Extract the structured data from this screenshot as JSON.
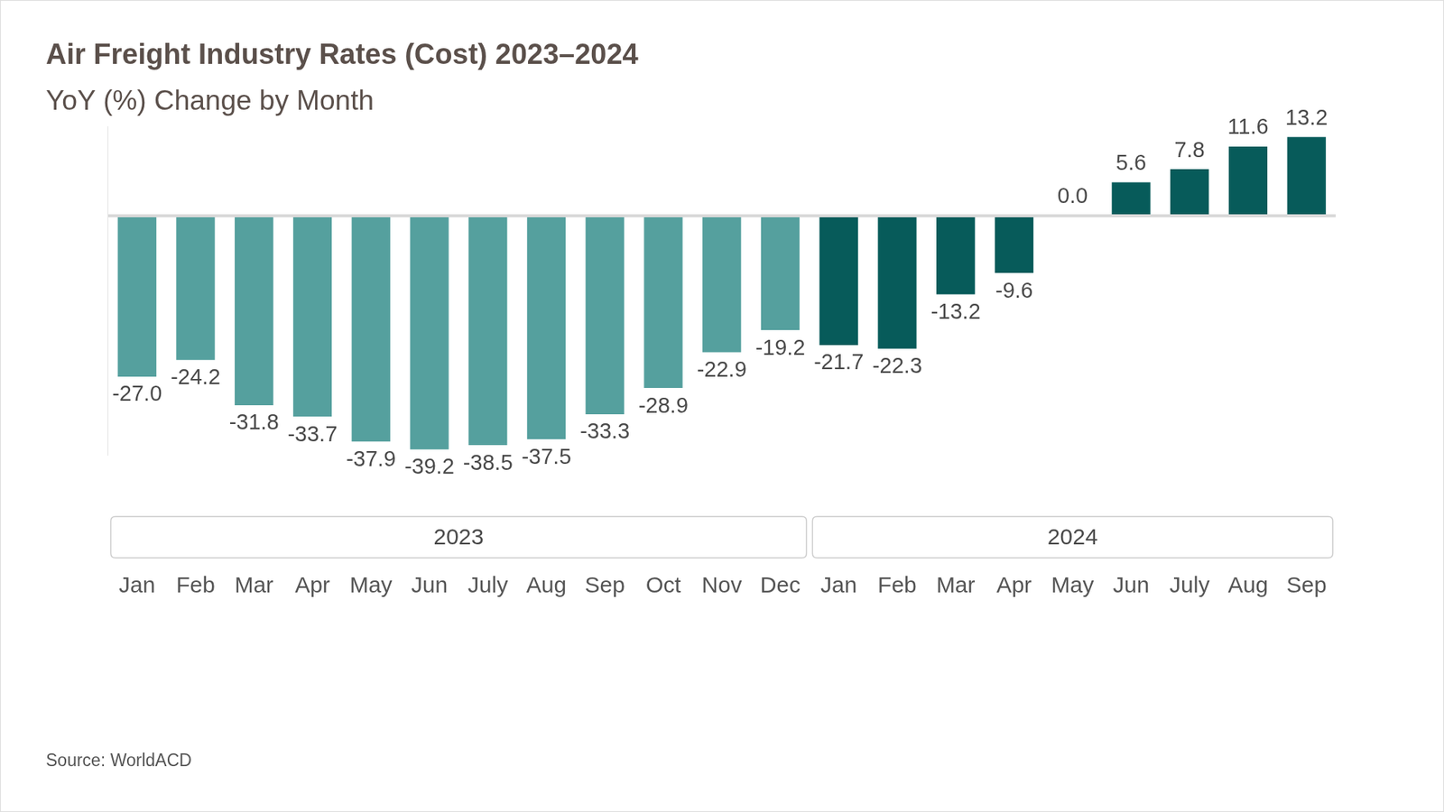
{
  "chart_data": {
    "type": "bar",
    "title": "Air Freight Industry Rates (Cost) 2023–2024",
    "subtitle": "YoY (%) Change by Month",
    "source": "Source: WorldACD",
    "categories": [
      "Jan",
      "Feb",
      "Mar",
      "Apr",
      "May",
      "Jun",
      "July",
      "Aug",
      "Sep",
      "Oct",
      "Nov",
      "Dec",
      "Jan",
      "Feb",
      "Mar",
      "Apr",
      "May",
      "Jun",
      "July",
      "Aug",
      "Sep"
    ],
    "series": [
      {
        "name": "2023",
        "color": "#55a09e",
        "values": [
          -27.0,
          -24.2,
          -31.8,
          -33.7,
          -37.9,
          -39.2,
          -38.5,
          -37.5,
          -33.3,
          -28.9,
          -22.9,
          -19.2,
          null,
          null,
          null,
          null,
          null,
          null,
          null,
          null,
          null
        ],
        "value_labels": [
          "-27.0",
          "-24.2",
          "-31.8",
          "-33.7",
          "-37.9",
          "-39.2",
          "-38.5",
          "-37.5",
          "-33.3",
          "-28.9",
          "-22.9",
          "-19.2",
          null,
          null,
          null,
          null,
          null,
          null,
          null,
          null,
          null
        ]
      },
      {
        "name": "2024",
        "color": "#075b5a",
        "values": [
          null,
          null,
          null,
          null,
          null,
          null,
          null,
          null,
          null,
          null,
          null,
          null,
          -21.7,
          -22.3,
          -13.2,
          -9.6,
          0.0,
          5.6,
          7.8,
          11.6,
          13.2
        ],
        "value_labels": [
          null,
          null,
          null,
          null,
          null,
          null,
          null,
          null,
          null,
          null,
          null,
          null,
          "-21.7",
          "-22.3",
          "-13.2",
          "-9.6",
          "0.0",
          "5.6",
          "7.8",
          "11.6",
          "13.2"
        ]
      }
    ],
    "ylim": [
      -40,
      15
    ],
    "yticks": [
      0
    ],
    "grid": true,
    "data_labels": true,
    "tick_labels": "x"
  }
}
